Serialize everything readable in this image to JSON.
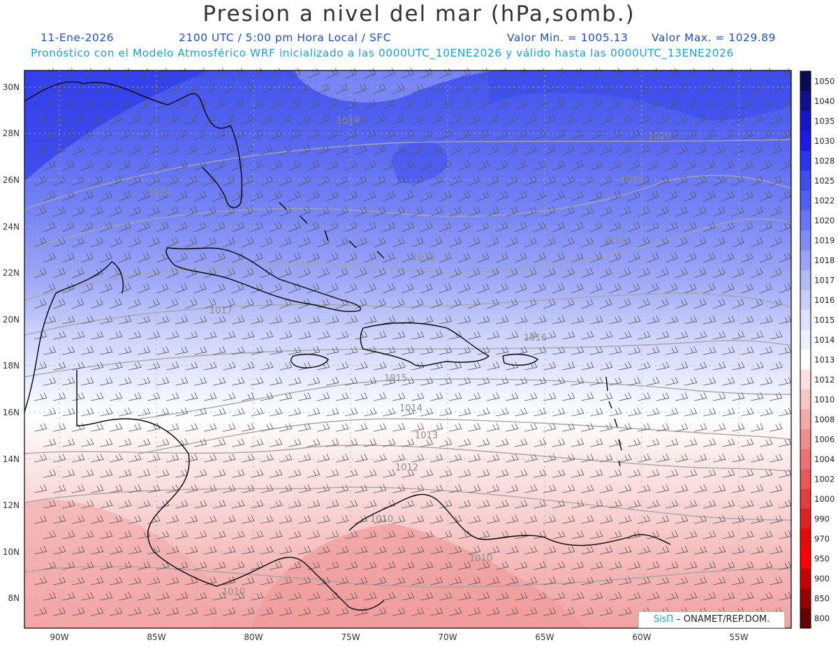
{
  "header": {
    "title": "Presion a nivel del mar (hPa,somb.)",
    "date": "11-Ene-2026",
    "time_info": "2100 UTC / 5:00 pm Hora Local / SFC",
    "min_value": "Valor Min. = 1005.13",
    "max_value": "Valor Max. = 1029.89",
    "model_info": "Pronóstico con el Modelo Atmosférico WRF inicializado a las 0000UTC_10ENE2026 y válido hasta las  0000UTC_13ENE2026"
  },
  "axes": {
    "lat_ticks": [
      "30N",
      "28N",
      "26N",
      "24N",
      "22N",
      "20N",
      "18N",
      "16N",
      "14N",
      "12N",
      "10N",
      "8N"
    ],
    "lon_ticks": [
      "90W",
      "85W",
      "80W",
      "75W",
      "70W",
      "65W",
      "60W",
      "55W"
    ]
  },
  "colorbar": {
    "levels": [
      "1050",
      "1040",
      "1035",
      "1030",
      "1028",
      "1025",
      "1022",
      "1020",
      "1019",
      "1018",
      "1017",
      "1016",
      "1015",
      "1014",
      "1013",
      "1012",
      "1010",
      "1008",
      "1006",
      "1004",
      "1002",
      "1000",
      "990",
      "970",
      "950",
      "900",
      "850",
      "800"
    ],
    "colors": [
      "#0b0a55",
      "#10108e",
      "#1414c8",
      "#1a1ae6",
      "#2a34ec",
      "#3e4ef0",
      "#5060f2",
      "#6676f4",
      "#7e8cf6",
      "#98a4f8",
      "#b0baf9",
      "#c8cffb",
      "#dde2fc",
      "#eef0fe",
      "#ffffff",
      "#fde0e0",
      "#f9c4c4",
      "#f5a9a9",
      "#f08e8e",
      "#ec7373",
      "#e85858",
      "#e33d3d",
      "#de2222",
      "#e60a0a",
      "#ff0000",
      "#c80000",
      "#960000",
      "#640000"
    ]
  },
  "contour_labels": [
    "1019",
    "1020",
    "1020",
    "1019",
    "1018",
    "1018",
    "1017",
    "1016",
    "1015",
    "1014",
    "1013",
    "1012",
    "1010",
    "1010",
    "1010"
  ],
  "credit": {
    "logo": "SisΠ",
    "org": " – ONAMET/REP.DOM."
  }
}
